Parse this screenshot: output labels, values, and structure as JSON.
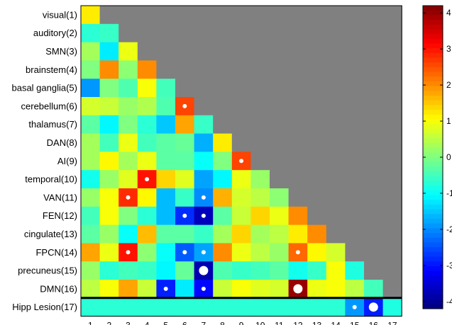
{
  "chart_data": {
    "type": "heatmap",
    "title": "",
    "xlabel": "",
    "ylabel": "",
    "row_labels": [
      "visual(1)",
      "auditory(2)",
      "SMN(3)",
      "brainstem(4)",
      "basal ganglia(5)",
      "cerebellum(6)",
      "thalamus(7)",
      "DAN(8)",
      "AI(9)",
      "temporal(10)",
      "VAN(11)",
      "FEN(12)",
      "cingulate(13)",
      "FPCN(14)",
      "precuneus(15)",
      "DMN(16)",
      "Hipp Lesion(17)"
    ],
    "col_labels": [
      "1",
      "2",
      "3",
      "4",
      "5",
      "6",
      "7",
      "8",
      "9",
      "10",
      "11",
      "12",
      "13",
      "14",
      "15",
      "16",
      "17"
    ],
    "matrix_lower_triangle": [
      [
        1.2
      ],
      [
        -0.7,
        -0.6
      ],
      [
        0.3,
        -1.2,
        0.9
      ],
      [
        0,
        2,
        0.1,
        2
      ],
      [
        -1.9,
        0,
        -0.4,
        1.0,
        -0.5
      ],
      [
        0.7,
        0.6,
        0.2,
        0.4,
        -0.4,
        2.6
      ],
      [
        -0.3,
        -1.1,
        0,
        -0.7,
        -1.5,
        1.8,
        -0.6
      ],
      [
        0.3,
        -0.5,
        0.9,
        -0.5,
        -0.3,
        -0.2,
        -1.7,
        1.2
      ],
      [
        0.3,
        1.1,
        0.3,
        0.9,
        -0.3,
        -0.3,
        -1.0,
        0,
        2.6
      ],
      [
        -0.9,
        0.2,
        0.8,
        3.0,
        1.4,
        0.8,
        -1.8,
        -1.1,
        0.9,
        0.2
      ],
      [
        0.2,
        1.0,
        2.8,
        1.1,
        -1.6,
        -0.6,
        -2.0,
        1.7,
        0.7,
        0.5,
        0.1
      ],
      [
        -0.5,
        1.0,
        0,
        -0.7,
        -1.6,
        -2.8,
        -3.7,
        -0.3,
        0.6,
        1.4,
        0.9,
        2.0
      ],
      [
        -0.3,
        0.2,
        -1.0,
        1.6,
        -0.3,
        -0.3,
        -0.6,
        0.3,
        1.4,
        0.3,
        0.5,
        1.2,
        2.0
      ],
      [
        1.8,
        0.9,
        3.0,
        0.1,
        -1.0,
        -2.4,
        -1.8,
        2.0,
        0.9,
        0.5,
        0.2,
        2.3,
        1.1,
        0.7
      ],
      [
        0.2,
        -0.7,
        -0.5,
        -0.6,
        -1.1,
        -0.2,
        -3.8,
        -0.4,
        -0.6,
        -0.5,
        -0.3,
        -0.9,
        -0.6,
        1.0,
        -0.8
      ],
      [
        0.5,
        1.0,
        1.8,
        0.6,
        -2.9,
        -1.2,
        -3.1,
        0.6,
        1.0,
        0.8,
        0.7,
        4.0,
        0.9,
        1.0,
        0.5,
        -0.5
      ],
      [
        -0.7,
        -0.7,
        -0.7,
        -0.7,
        -0.7,
        -0.7,
        -0.7,
        -0.7,
        -0.7,
        -0.7,
        -0.7,
        -0.7,
        -0.7,
        -0.7,
        -1.9,
        -2.9,
        -0.8
      ]
    ],
    "significance_markers": [
      {
        "row": 6,
        "col": 6,
        "size": "small"
      },
      {
        "row": 9,
        "col": 9,
        "size": "small"
      },
      {
        "row": 10,
        "col": 4,
        "size": "small"
      },
      {
        "row": 11,
        "col": 3,
        "size": "small"
      },
      {
        "row": 11,
        "col": 7,
        "size": "small"
      },
      {
        "row": 12,
        "col": 6,
        "size": "small"
      },
      {
        "row": 12,
        "col": 7,
        "size": "small"
      },
      {
        "row": 14,
        "col": 3,
        "size": "small"
      },
      {
        "row": 14,
        "col": 6,
        "size": "small"
      },
      {
        "row": 14,
        "col": 7,
        "size": "small"
      },
      {
        "row": 14,
        "col": 12,
        "size": "small"
      },
      {
        "row": 15,
        "col": 7,
        "size": "large"
      },
      {
        "row": 16,
        "col": 5,
        "size": "small"
      },
      {
        "row": 16,
        "col": 7,
        "size": "small"
      },
      {
        "row": 16,
        "col": 12,
        "size": "large"
      },
      {
        "row": 17,
        "col": 15,
        "size": "small"
      },
      {
        "row": 17,
        "col": 16,
        "size": "large"
      }
    ],
    "colorbar": {
      "range": [
        -4.2,
        4.2
      ],
      "ticks": [
        4,
        3,
        2,
        1,
        0,
        -1,
        -2,
        -3,
        -4
      ],
      "colormap": "jet"
    },
    "upper_triangle_color": "#808080",
    "separator_after_row": 16
  }
}
